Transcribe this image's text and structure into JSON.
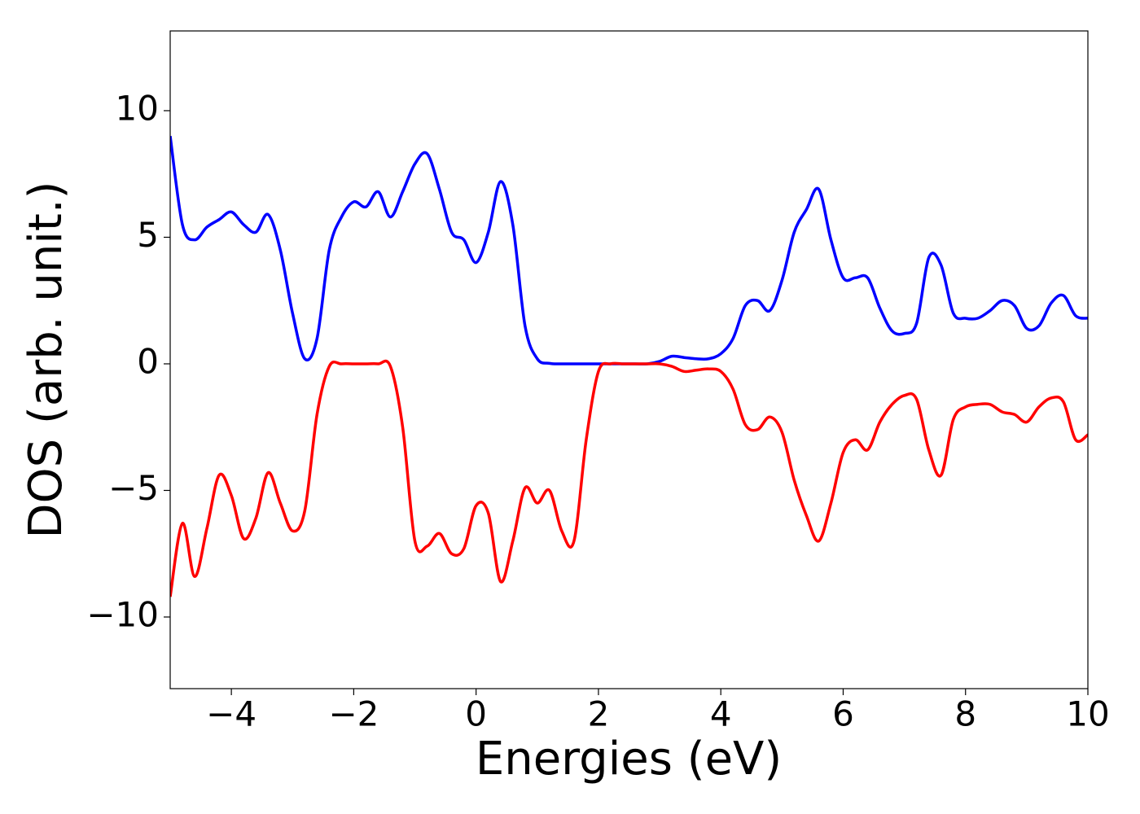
{
  "chart_data": {
    "type": "line",
    "xlabel": "Energies (eV)",
    "ylabel": "DOS (arb. unit.)",
    "xlim": [
      -5,
      10
    ],
    "ylim": [
      -12.83,
      13.15
    ],
    "xticks": [
      {
        "value": -4,
        "label": "−4"
      },
      {
        "value": -2,
        "label": "−2"
      },
      0,
      2,
      4,
      6,
      8,
      10
    ],
    "yticks": [
      {
        "value": -10,
        "label": "−10"
      },
      {
        "value": -5,
        "label": "−5"
      },
      0,
      5,
      10
    ],
    "x": [
      -5,
      -4.8,
      -4.6,
      -4.4,
      -4.2,
      -4,
      -3.8,
      -3.6,
      -3.4,
      -3.2,
      -3,
      -2.8,
      -2.6,
      -2.4,
      -2.2,
      -2,
      -1.8,
      -1.6,
      -1.4,
      -1.2,
      -1,
      -0.8,
      -0.6,
      -0.4,
      -0.2,
      0,
      0.2,
      0.4,
      0.6,
      0.8,
      1,
      1.2,
      1.4,
      1.6,
      1.8,
      2,
      2.2,
      2.4,
      2.6,
      2.8,
      3,
      3.2,
      3.4,
      3.6,
      3.8,
      4,
      4.2,
      4.4,
      4.6,
      4.8,
      5,
      5.2,
      5.4,
      5.6,
      5.8,
      6,
      6.2,
      6.4,
      6.6,
      6.8,
      7,
      7.2,
      7.4,
      7.6,
      7.8,
      8,
      8.2,
      8.4,
      8.6,
      8.8,
      9,
      9.2,
      9.4,
      9.6,
      9.8,
      10
    ],
    "series": [
      {
        "color": "#0000ff",
        "values": [
          9,
          5.5,
          4.9,
          5.4,
          5.7,
          6.0,
          5.5,
          5.2,
          5.9,
          4.5,
          2.0,
          0.2,
          1.0,
          4.5,
          5.8,
          6.4,
          6.2,
          6.8,
          5.8,
          6.8,
          7.9,
          8.3,
          6.9,
          5.2,
          4.9,
          4.0,
          5.2,
          7.2,
          5.5,
          1.5,
          0.2,
          0.02,
          0,
          0,
          0,
          0,
          0,
          0,
          0,
          0,
          0.1,
          0.3,
          0.25,
          0.2,
          0.2,
          0.4,
          1.0,
          2.3,
          2.5,
          2.1,
          3.3,
          5.2,
          6.1,
          6.9,
          4.9,
          3.4,
          3.4,
          3.4,
          2.2,
          1.3,
          1.2,
          1.6,
          4.2,
          3.9,
          2.0,
          1.8,
          1.8,
          2.1,
          2.5,
          2.3,
          1.4,
          1.5,
          2.4,
          2.7,
          1.9,
          1.8
        ]
      },
      {
        "color": "#ff0000",
        "values": [
          -9.2,
          -6.3,
          -8.4,
          -6.5,
          -4.4,
          -5.2,
          -6.9,
          -6.1,
          -4.3,
          -5.5,
          -6.6,
          -5.8,
          -2.0,
          -0.1,
          0,
          0,
          0,
          0,
          -0.1,
          -2.5,
          -7.0,
          -7.2,
          -6.7,
          -7.5,
          -7.3,
          -5.6,
          -5.9,
          -8.6,
          -7.0,
          -4.9,
          -5.5,
          -5.0,
          -6.6,
          -7.0,
          -3.0,
          -0.3,
          0,
          0,
          0,
          0,
          0,
          -0.1,
          -0.3,
          -0.25,
          -0.2,
          -0.3,
          -1.0,
          -2.4,
          -2.6,
          -2.1,
          -2.7,
          -4.6,
          -6.0,
          -7.0,
          -5.5,
          -3.5,
          -3.0,
          -3.4,
          -2.3,
          -1.6,
          -1.25,
          -1.4,
          -3.4,
          -4.4,
          -2.2,
          -1.7,
          -1.6,
          -1.6,
          -1.9,
          -2.0,
          -2.3,
          -1.7,
          -1.35,
          -1.5,
          -3.0,
          -2.8
        ]
      }
    ]
  }
}
